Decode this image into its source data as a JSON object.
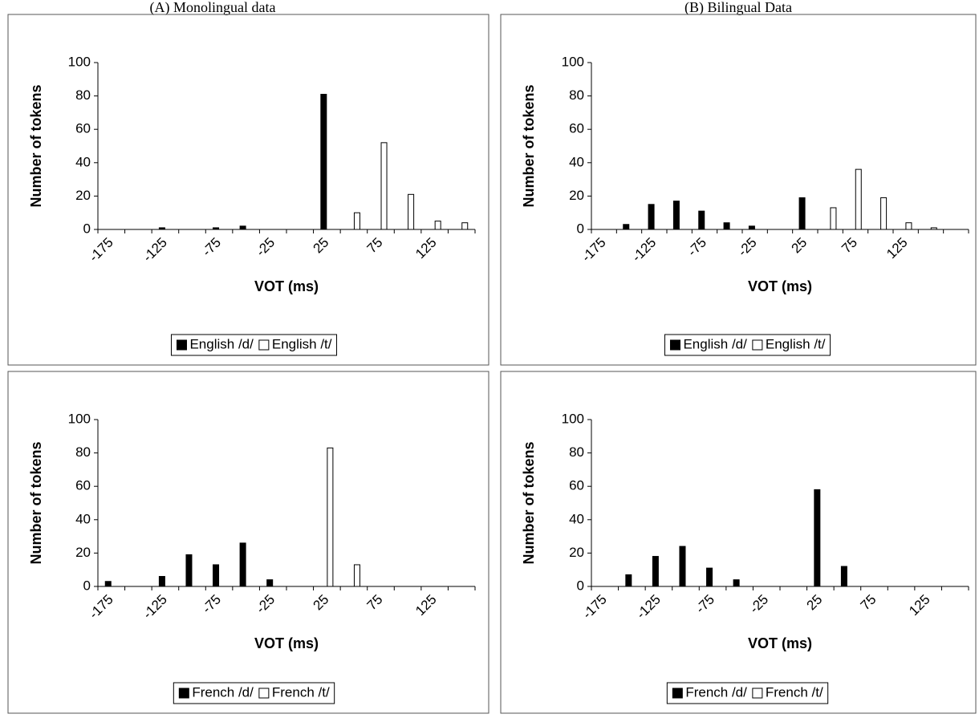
{
  "panel_titles": [
    "(A) Monolingual data",
    "(B) Bilingual Data"
  ],
  "chart_data": [
    {
      "type": "bar",
      "x_label": "VOT (ms)",
      "y_label": "Number of tokens",
      "categories": [
        -175,
        null,
        -125,
        null,
        -75,
        null,
        -25,
        null,
        25,
        null,
        75,
        null,
        125,
        null
      ],
      "series": [
        {
          "name": "English /d/",
          "color": "#000000",
          "values": [
            0,
            0,
            1,
            0,
            1,
            2,
            0,
            0,
            81,
            0,
            0,
            0,
            0,
            0
          ]
        },
        {
          "name": "English /t/",
          "color": "#ffffff",
          "values": [
            0,
            0,
            0,
            0,
            0,
            0,
            0,
            0,
            0,
            10,
            52,
            21,
            5,
            4
          ]
        }
      ],
      "ylim": [
        0,
        100
      ],
      "yticks": [
        0,
        20,
        40,
        60,
        80,
        100
      ],
      "legend": "bottom"
    },
    {
      "type": "bar",
      "x_label": "VOT (ms)",
      "y_label": "Number of tokens",
      "categories": [
        -175,
        null,
        -125,
        null,
        -75,
        null,
        -25,
        null,
        25,
        null,
        75,
        null,
        125,
        null,
        null
      ],
      "series": [
        {
          "name": "English /d/",
          "color": "#000000",
          "values": [
            0,
            3,
            15,
            17,
            11,
            4,
            2,
            0,
            19,
            0,
            0,
            0,
            0,
            0,
            0
          ]
        },
        {
          "name": "English /t/",
          "color": "#ffffff",
          "values": [
            0,
            0,
            0,
            0,
            0,
            0,
            0,
            0,
            0,
            13,
            36,
            19,
            4,
            1,
            0
          ]
        }
      ],
      "ylim": [
        0,
        100
      ],
      "yticks": [
        0,
        20,
        40,
        60,
        80,
        100
      ],
      "legend": "bottom"
    },
    {
      "type": "bar",
      "x_label": "VOT (ms)",
      "y_label": "Number of tokens",
      "categories": [
        -175,
        null,
        -125,
        null,
        -75,
        null,
        -25,
        null,
        25,
        null,
        75,
        null,
        125,
        null
      ],
      "series": [
        {
          "name": "French /d/",
          "color": "#000000",
          "values": [
            3,
            0,
            6,
            19,
            13,
            26,
            4,
            0,
            0,
            0,
            0,
            0,
            0,
            0
          ]
        },
        {
          "name": "French /t/",
          "color": "#ffffff",
          "values": [
            0,
            0,
            0,
            0,
            0,
            0,
            0,
            0,
            83,
            13,
            0,
            0,
            0,
            0
          ]
        }
      ],
      "ylim": [
        0,
        100
      ],
      "yticks": [
        0,
        20,
        40,
        60,
        80,
        100
      ],
      "legend": "bottom"
    },
    {
      "type": "bar",
      "x_label": "VOT (ms)",
      "y_label": "Number of tokens",
      "categories": [
        -175,
        null,
        -125,
        null,
        -75,
        null,
        -25,
        null,
        25,
        null,
        75,
        null,
        125,
        null
      ],
      "series": [
        {
          "name": "French /d/",
          "color": "#000000",
          "values": [
            0,
            7,
            18,
            24,
            11,
            4,
            0,
            0,
            58,
            12,
            0,
            0,
            0,
            0
          ]
        },
        {
          "name": "French /t/",
          "color": "#ffffff",
          "values": [
            0,
            0,
            0,
            0,
            0,
            0,
            0,
            0,
            0,
            0,
            0,
            0,
            0,
            0
          ]
        }
      ],
      "ylim": [
        0,
        100
      ],
      "yticks": [
        0,
        20,
        40,
        60,
        80,
        100
      ],
      "legend": "bottom"
    }
  ]
}
